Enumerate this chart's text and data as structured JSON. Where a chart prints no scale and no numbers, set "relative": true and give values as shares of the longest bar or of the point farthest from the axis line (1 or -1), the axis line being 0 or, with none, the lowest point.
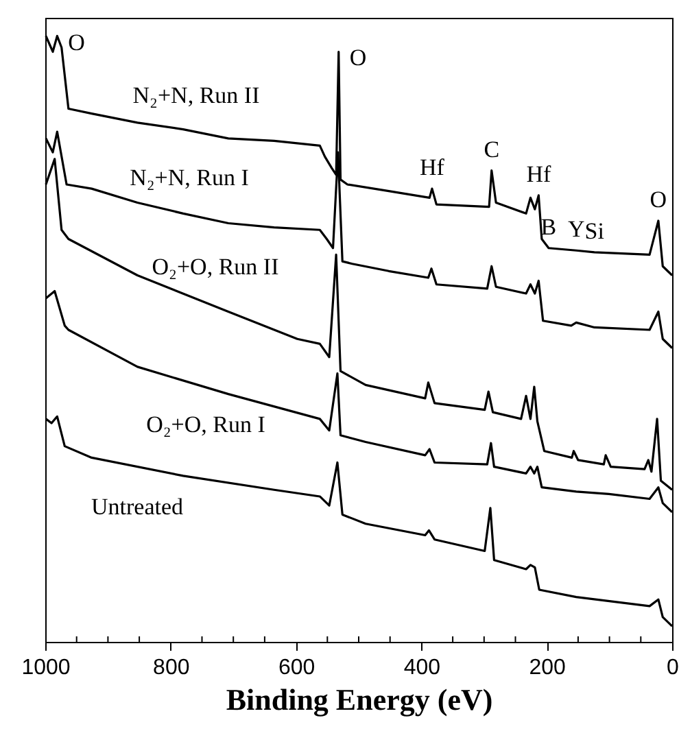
{
  "chart_data": {
    "type": "line",
    "relative": true,
    "xlabel": "Binding Energy (eV)",
    "xlim": [
      1000,
      0
    ],
    "xticks": [
      1000,
      {
        "value": 950,
        "label": null
      },
      {
        "value": 900,
        "label": null
      },
      {
        "value": 850,
        "label": null
      },
      800,
      {
        "value": 750,
        "label": null
      },
      {
        "value": 700,
        "label": null
      },
      {
        "value": 650,
        "label": null
      },
      600,
      {
        "value": 550,
        "label": null
      },
      {
        "value": 500,
        "label": null
      },
      {
        "value": 450,
        "label": null
      },
      400,
      {
        "value": 350,
        "label": null
      },
      {
        "value": 300,
        "label": null
      },
      {
        "value": 250,
        "label": null
      },
      200,
      {
        "value": 150,
        "label": null
      },
      {
        "value": 100,
        "label": null
      },
      {
        "value": 50,
        "label": null
      },
      0
    ],
    "grid": false,
    "legend": false,
    "line_style": "solid",
    "marker": "none",
    "series": [
      {
        "name": "N₂+N, Run II",
        "color": "#000000",
        "x": [
          999,
          988,
          981,
          974,
          963,
          926,
          853,
          780,
          708,
          635,
          562,
          554,
          543,
          536,
          532,
          529,
          518,
          452,
          387,
          383,
          376,
          292,
          288,
          281,
          233,
          226,
          219,
          213,
          208,
          197,
          153,
          124,
          36,
          22,
          15,
          0
        ],
        "values": [
          1.0,
          0.974,
          1.0,
          0.981,
          0.88,
          0.872,
          0.857,
          0.846,
          0.831,
          0.827,
          0.819,
          0.801,
          0.782,
          0.771,
          0.974,
          0.763,
          0.755,
          0.744,
          0.733,
          0.748,
          0.722,
          0.718,
          0.778,
          0.725,
          0.707,
          0.733,
          0.714,
          0.737,
          0.665,
          0.65,
          0.646,
          0.643,
          0.639,
          0.695,
          0.62,
          0.605
        ]
      },
      {
        "name": "N₂+N, Run I",
        "color": "#000000",
        "x": [
          999,
          988,
          981,
          966,
          926,
          853,
          780,
          708,
          635,
          562,
          551,
          541,
          533,
          526,
          510,
          452,
          389,
          384,
          376,
          295,
          288,
          281,
          233,
          226,
          219,
          213,
          206,
          161,
          153,
          124,
          36,
          22,
          15,
          0
        ],
        "values": [
          0.831,
          0.808,
          0.842,
          0.755,
          0.748,
          0.725,
          0.707,
          0.691,
          0.684,
          0.68,
          0.665,
          0.65,
          0.808,
          0.628,
          0.624,
          0.612,
          0.601,
          0.616,
          0.59,
          0.583,
          0.62,
          0.586,
          0.575,
          0.59,
          0.575,
          0.596,
          0.53,
          0.522,
          0.527,
          0.519,
          0.515,
          0.545,
          0.5,
          0.485
        ]
      },
      {
        "name": "O₂+O, Run II",
        "color": "#000000",
        "x": [
          999,
          985,
          974,
          963,
          853,
          708,
          598,
          562,
          547,
          536,
          529,
          489,
          394,
          389,
          379,
          299,
          293,
          286,
          241,
          233,
          226,
          220,
          215,
          204,
          160,
          157,
          150,
          109,
          106,
          98,
          44,
          38,
          33,
          24,
          18,
          0
        ],
        "values": [
          0.755,
          0.797,
          0.68,
          0.665,
          0.605,
          0.545,
          0.5,
          0.492,
          0.47,
          0.639,
          0.447,
          0.424,
          0.402,
          0.428,
          0.394,
          0.383,
          0.413,
          0.379,
          0.368,
          0.406,
          0.368,
          0.421,
          0.364,
          0.315,
          0.304,
          0.315,
          0.3,
          0.293,
          0.308,
          0.289,
          0.285,
          0.3,
          0.281,
          0.368,
          0.266,
          0.251
        ]
      },
      {
        "name": "O₂+O, Run I",
        "color": "#000000",
        "x": [
          999,
          985,
          969,
          963,
          853,
          708,
          562,
          547,
          534,
          529,
          489,
          394,
          387,
          379,
          295,
          289,
          284,
          233,
          226,
          220,
          215,
          208,
          153,
          101,
          36,
          22,
          15,
          0
        ],
        "values": [
          0.567,
          0.579,
          0.522,
          0.515,
          0.454,
          0.409,
          0.368,
          0.349,
          0.443,
          0.341,
          0.33,
          0.308,
          0.318,
          0.296,
          0.293,
          0.328,
          0.289,
          0.278,
          0.289,
          0.278,
          0.289,
          0.255,
          0.248,
          0.244,
          0.236,
          0.255,
          0.229,
          0.214
        ]
      },
      {
        "name": "Untreated",
        "color": "#000000",
        "x": [
          999,
          990,
          981,
          969,
          926,
          780,
          635,
          562,
          547,
          534,
          526,
          489,
          394,
          388,
          379,
          299,
          290,
          284,
          233,
          226,
          219,
          212,
          153,
          36,
          22,
          15,
          0
        ],
        "values": [
          0.368,
          0.361,
          0.372,
          0.323,
          0.304,
          0.274,
          0.251,
          0.24,
          0.225,
          0.296,
          0.21,
          0.195,
          0.176,
          0.184,
          0.169,
          0.15,
          0.221,
          0.135,
          0.12,
          0.127,
          0.123,
          0.086,
          0.074,
          0.059,
          0.07,
          0.041,
          0.026
        ]
      }
    ],
    "annotations": [
      {
        "text": "O",
        "x": 981,
        "y": 1.0
      },
      {
        "text": "O",
        "x": 532,
        "y": 0.974
      },
      {
        "text": "Hf",
        "x": 383,
        "y": 0.748
      },
      {
        "text": "C",
        "x": 288,
        "y": 0.778
      },
      {
        "text": "Hf",
        "x": 213,
        "y": 0.737
      },
      {
        "text": "B",
        "x": 197,
        "y": 0.65
      },
      {
        "text": "Y",
        "x": 153,
        "y": 0.646
      },
      {
        "text": "Si",
        "x": 124,
        "y": 0.643
      },
      {
        "text": "O",
        "x": 22,
        "y": 0.695
      }
    ]
  }
}
